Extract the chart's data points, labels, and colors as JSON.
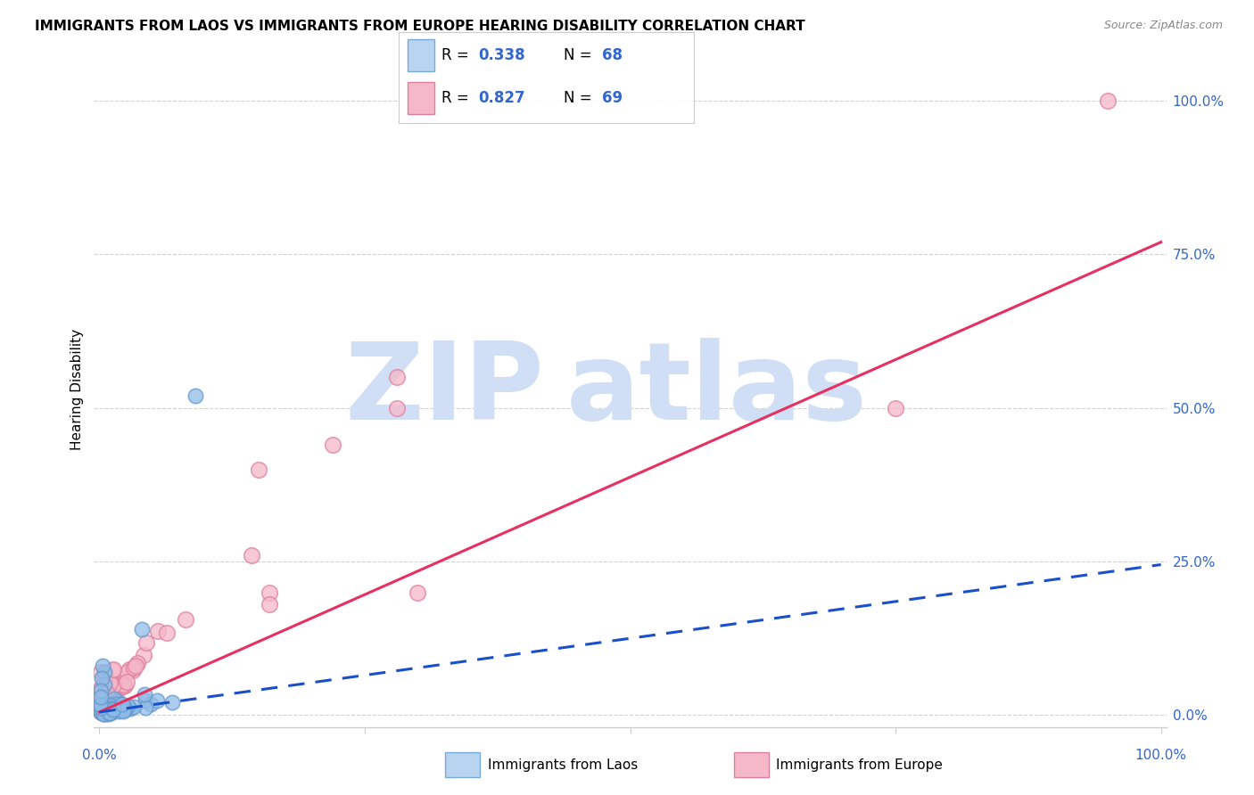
{
  "title": "IMMIGRANTS FROM LAOS VS IMMIGRANTS FROM EUROPE HEARING DISABILITY CORRELATION CHART",
  "source": "Source: ZipAtlas.com",
  "ylabel": "Hearing Disability",
  "ytick_labels": [
    "0.0%",
    "25.0%",
    "50.0%",
    "75.0%",
    "100.0%"
  ],
  "ytick_positions": [
    0.0,
    0.25,
    0.5,
    0.75,
    1.0
  ],
  "laos_R": 0.338,
  "laos_N": 68,
  "europe_R": 0.827,
  "europe_N": 69,
  "laos_scatter_color": "#90bce8",
  "laos_scatter_edge": "#6699cc",
  "europe_scatter_color": "#f5b8c8",
  "europe_scatter_edge": "#e080a0",
  "laos_line_color": "#1a4fcc",
  "europe_line_color": "#e83060",
  "laos_legend_fill": "#b8d4f0",
  "laos_legend_edge": "#7aaad8",
  "europe_legend_fill": "#f5b8c8",
  "europe_legend_edge": "#e080a0",
  "value_color": "#3366cc",
  "watermark_color": "#d0dff5",
  "grid_color": "#cccccc",
  "title_fontsize": 11,
  "tick_fontsize": 11,
  "label_fontsize": 11
}
